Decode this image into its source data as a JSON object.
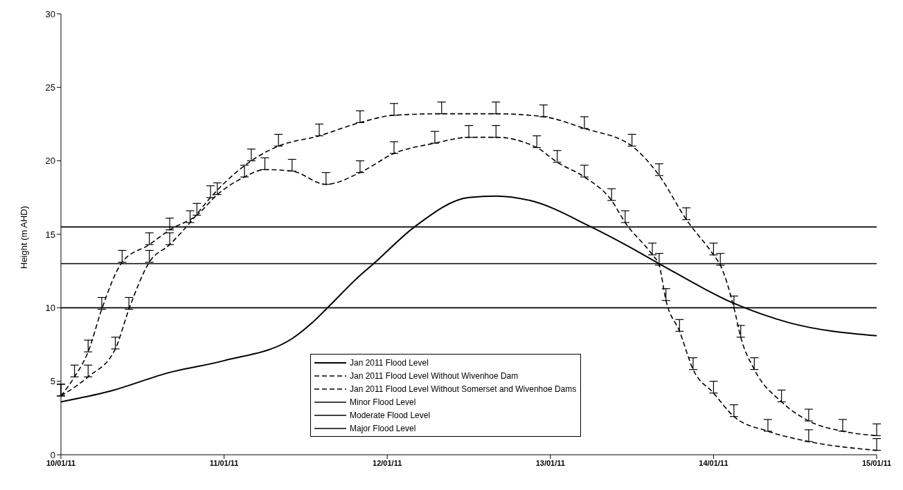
{
  "chart_data": {
    "type": "line",
    "ylabel": "Height (m AHD)",
    "xlim": [
      "2011-01-10T00:00",
      "2011-01-15T00:00"
    ],
    "xticks": [
      {
        "value": "2011-01-10T00:00",
        "label": "10/01/11"
      },
      {
        "value": "2011-01-11T00:00",
        "label": "11/01/11"
      },
      {
        "value": "2011-01-12T00:00",
        "label": "12/01/11"
      },
      {
        "value": "2011-01-13T00:00",
        "label": "13/01/11"
      },
      {
        "value": "2011-01-14T00:00",
        "label": "14/01/11"
      },
      {
        "value": "2011-01-15T00:00",
        "label": "15/01/11"
      }
    ],
    "ylim": [
      0,
      30
    ],
    "yticks": [
      0,
      5,
      10,
      15,
      20,
      25,
      30
    ],
    "grid": false,
    "legend": "bottom",
    "marker": "none",
    "series": [
      {
        "name": "Jan 2011 Flood Level",
        "color": "#000000",
        "line_style": "solid",
        "x": [
          "2011-01-10T00:00",
          "2011-01-10T07:00",
          "2011-01-10T16:00",
          "2011-01-11T00:00",
          "2011-01-11T10:00",
          "2011-01-11T13:00",
          "2011-01-11T15:00",
          "2011-01-11T20:00",
          "2011-01-11T22:00",
          "2011-01-12T04:00",
          "2011-01-12T12:00",
          "2011-01-12T16:00",
          "2011-01-12T21:00",
          "2011-01-13T06:00",
          "2011-01-13T11:00",
          "2011-01-13T16:00",
          "2011-01-14T03:00",
          "2011-01-14T11:00",
          "2011-01-15T00:00"
        ],
        "values": [
          3.6,
          4.3,
          5.6,
          6.4,
          7.9,
          9.0,
          9.9,
          12.2,
          13.0,
          15.5,
          17.5,
          17.6,
          17.3,
          15.5,
          14.3,
          13.0,
          10.3,
          9.0,
          8.1
        ]
      },
      {
        "name": "Jan 2011 Flood Level Without Wivenhoe Dam",
        "color": "#000000",
        "line_style": "dashed",
        "x": [
          "2011-01-10T00:00",
          "2011-01-10T02:00",
          "2011-01-10T04:00",
          "2011-01-10T06:00",
          "2011-01-10T09:00",
          "2011-01-10T13:00",
          "2011-01-10T16:00",
          "2011-01-10T20:00",
          "2011-01-10T23:00",
          "2011-01-11T03:00",
          "2011-01-11T06:00",
          "2011-01-11T10:00",
          "2011-01-11T15:00",
          "2011-01-11T20:00",
          "2011-01-12T01:00",
          "2011-01-12T07:00",
          "2011-01-12T12:00",
          "2011-01-12T16:00",
          "2011-01-12T22:00",
          "2011-01-13T01:00",
          "2011-01-13T05:00",
          "2011-01-13T09:00",
          "2011-01-13T11:00",
          "2011-01-13T15:00",
          "2011-01-13T16:00",
          "2011-01-13T17:00",
          "2011-01-13T19:00",
          "2011-01-13T21:00",
          "2011-01-14T00:00",
          "2011-01-14T03:00",
          "2011-01-14T08:00",
          "2011-01-14T14:00",
          "2011-01-15T00:00"
        ],
        "values": [
          4.0,
          5.3,
          7.0,
          9.9,
          13.1,
          14.3,
          15.3,
          16.3,
          17.7,
          18.9,
          19.4,
          19.3,
          18.4,
          19.2,
          20.5,
          21.2,
          21.6,
          21.6,
          20.9,
          19.9,
          18.9,
          17.3,
          15.8,
          13.6,
          12.9,
          10.5,
          8.4,
          5.8,
          4.2,
          2.6,
          1.6,
          0.9,
          0.3
        ],
        "errors": [
          [
            4.0,
            4.8
          ],
          [
            5.3,
            6.1
          ],
          [
            7.0,
            7.8
          ],
          [
            9.9,
            10.7
          ],
          [
            13.1,
            13.9
          ],
          [
            14.3,
            15.1
          ],
          [
            15.3,
            16.1
          ],
          [
            16.3,
            17.1
          ],
          [
            17.7,
            18.5
          ],
          [
            18.9,
            19.7
          ],
          [
            19.4,
            20.2
          ],
          [
            19.3,
            20.1
          ],
          [
            18.4,
            19.2
          ],
          [
            19.2,
            20.0
          ],
          [
            20.5,
            21.3
          ],
          [
            21.2,
            22.0
          ],
          [
            21.6,
            22.4
          ],
          [
            21.6,
            22.4
          ],
          [
            20.9,
            21.7
          ],
          [
            19.9,
            20.7
          ],
          [
            18.9,
            19.7
          ],
          [
            17.3,
            18.1
          ],
          [
            15.8,
            16.6
          ],
          [
            13.6,
            14.4
          ],
          [
            12.9,
            13.7
          ],
          [
            10.5,
            11.3
          ],
          [
            8.4,
            9.2
          ],
          [
            5.8,
            6.6
          ],
          [
            4.2,
            5.0
          ],
          [
            2.6,
            3.4
          ],
          [
            1.6,
            2.4
          ],
          [
            0.9,
            1.7
          ],
          [
            0.3,
            1.1
          ]
        ]
      },
      {
        "name": "Jan 2011 Flood Level Without Somerset and Wivenhoe Dams",
        "color": "#000000",
        "line_style": "dashed",
        "x": [
          "2011-01-10T00:00",
          "2011-01-10T04:00",
          "2011-01-10T08:00",
          "2011-01-10T10:00",
          "2011-01-10T13:00",
          "2011-01-10T16:00",
          "2011-01-10T19:00",
          "2011-01-10T22:00",
          "2011-01-11T04:00",
          "2011-01-11T08:00",
          "2011-01-11T14:00",
          "2011-01-11T20:00",
          "2011-01-12T01:00",
          "2011-01-12T08:00",
          "2011-01-12T16:00",
          "2011-01-12T23:00",
          "2011-01-13T05:00",
          "2011-01-13T12:00",
          "2011-01-13T16:00",
          "2011-01-13T20:00",
          "2011-01-14T00:00",
          "2011-01-14T01:00",
          "2011-01-14T03:00",
          "2011-01-14T04:00",
          "2011-01-14T06:00",
          "2011-01-14T10:00",
          "2011-01-14T14:00",
          "2011-01-14T19:00",
          "2011-01-15T00:00"
        ],
        "values": [
          4.0,
          5.3,
          7.2,
          9.9,
          13.1,
          14.3,
          15.8,
          17.5,
          20.0,
          21.0,
          21.7,
          22.6,
          23.1,
          23.2,
          23.2,
          23.0,
          22.2,
          21.0,
          19.0,
          16.0,
          13.6,
          12.9,
          10.0,
          8.0,
          5.8,
          3.6,
          2.3,
          1.6,
          1.3
        ],
        "errors": [
          [
            4.0,
            4.8
          ],
          [
            5.3,
            6.1
          ],
          [
            7.2,
            8.0
          ],
          [
            9.9,
            10.7
          ],
          [
            13.1,
            13.9
          ],
          [
            14.3,
            15.1
          ],
          [
            15.8,
            16.6
          ],
          [
            17.5,
            18.3
          ],
          [
            20.0,
            20.8
          ],
          [
            21.0,
            21.8
          ],
          [
            21.7,
            22.5
          ],
          [
            22.6,
            23.4
          ],
          [
            23.1,
            23.9
          ],
          [
            23.2,
            24.0
          ],
          [
            23.2,
            24.0
          ],
          [
            23.0,
            23.8
          ],
          [
            22.2,
            23.0
          ],
          [
            21.0,
            21.8
          ],
          [
            19.0,
            19.8
          ],
          [
            16.0,
            16.8
          ],
          [
            13.6,
            14.4
          ],
          [
            12.9,
            13.7
          ],
          [
            10.0,
            10.8
          ],
          [
            8.0,
            8.8
          ],
          [
            5.8,
            6.6
          ],
          [
            3.6,
            4.4
          ],
          [
            2.3,
            3.1
          ],
          [
            1.6,
            2.4
          ],
          [
            1.3,
            2.1
          ]
        ]
      },
      {
        "name": "Minor Flood Level",
        "color": "#000000",
        "line_style": "solid",
        "x": [
          "2011-01-10T00:00",
          "2011-01-15T00:00"
        ],
        "values": [
          10,
          10
        ]
      },
      {
        "name": "Moderate Flood Level",
        "color": "#000000",
        "line_style": "solid",
        "x": [
          "2011-01-10T00:00",
          "2011-01-15T00:00"
        ],
        "values": [
          13,
          13
        ]
      },
      {
        "name": "Major Flood Level",
        "color": "#000000",
        "line_style": "solid",
        "x": [
          "2011-01-10T00:00",
          "2011-01-15T00:00"
        ],
        "values": [
          15.5,
          15.5
        ]
      }
    ]
  }
}
